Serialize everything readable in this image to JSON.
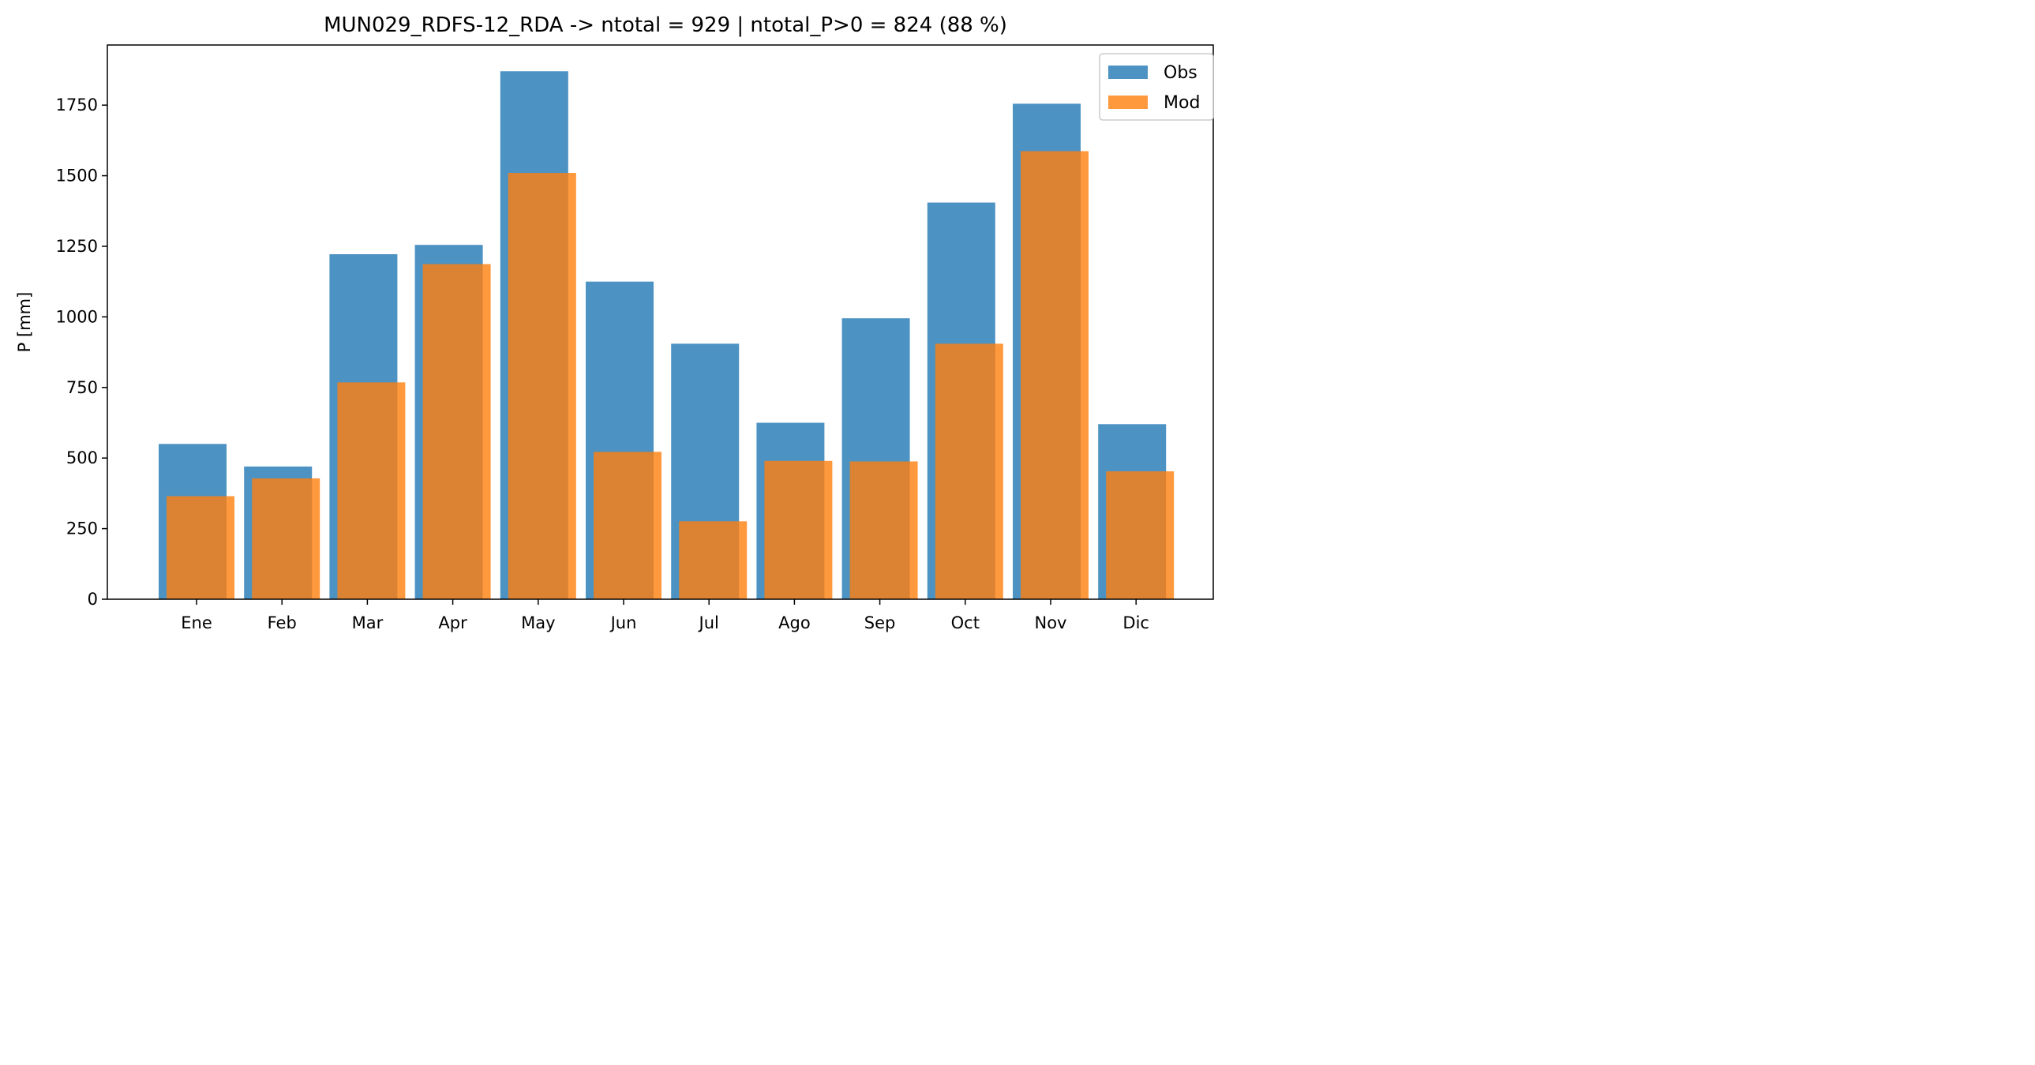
{
  "chart_data": {
    "type": "bar",
    "title": "MUN029_RDFS-12_RDA -> ntotal = 929 | ntotal_P>0 = 824 (88 %)",
    "xlabel": "",
    "ylabel": "P [mm]",
    "categories": [
      "Ene",
      "Feb",
      "Mar",
      "Apr",
      "May",
      "Jun",
      "Jul",
      "Ago",
      "Sep",
      "Oct",
      "Nov",
      "Dic"
    ],
    "ylim": [
      0,
      1963
    ],
    "yticks": [
      0,
      250,
      500,
      750,
      1000,
      1250,
      1500,
      1750
    ],
    "grid": false,
    "legend_position": "top-right",
    "series": [
      {
        "name": "Obs",
        "color": "#1f77b4",
        "opacity": 0.8,
        "values": [
          550,
          470,
          1222,
          1255,
          1870,
          1125,
          905,
          625,
          995,
          1405,
          1755,
          620
        ]
      },
      {
        "name": "Mod",
        "color": "#ff7f0e",
        "opacity": 0.8,
        "values": [
          365,
          428,
          768,
          1187,
          1510,
          522,
          276,
          490,
          488,
          905,
          1587,
          453
        ]
      }
    ]
  }
}
